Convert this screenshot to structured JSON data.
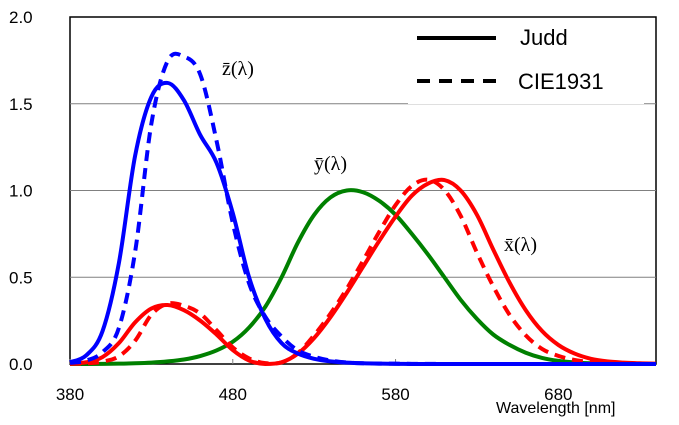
{
  "chart_data": {
    "type": "line",
    "xlabel": "Wavelength [nm]",
    "ylabel": "",
    "xlim": [
      380,
      740
    ],
    "ylim": [
      0,
      2.0
    ],
    "x_ticks": [
      380,
      480,
      580,
      680
    ],
    "y_ticks": [
      0.0,
      0.5,
      1.0,
      1.5,
      2.0
    ],
    "x_tick_labels": [
      "380",
      "480",
      "580",
      "680"
    ],
    "y_tick_labels": [
      "0.0",
      "0.5",
      "1.0",
      "1.5",
      "2.0"
    ],
    "grid": "horizontal",
    "legend_position": "top-right",
    "legend": [
      {
        "label": "Judd",
        "style": "solid"
      },
      {
        "label": "CIE1931",
        "style": "dashed"
      }
    ],
    "annotations": [
      {
        "text": "z̄(λ)",
        "x": 454,
        "y": 1.72
      },
      {
        "text": "ȳ(λ)",
        "x": 532,
        "y": 1.11
      },
      {
        "text": "x̄(λ)",
        "x": 646,
        "y": 0.66
      }
    ],
    "x": [
      380,
      390,
      400,
      410,
      420,
      430,
      440,
      450,
      460,
      470,
      480,
      490,
      500,
      510,
      520,
      530,
      540,
      550,
      560,
      570,
      580,
      590,
      600,
      610,
      620,
      630,
      640,
      650,
      660,
      670,
      680,
      690,
      700,
      710,
      720,
      730,
      740
    ],
    "series": [
      {
        "curve": "x",
        "system": "Judd",
        "color": "#ff0000",
        "style": "solid",
        "values": [
          0.002,
          0.01,
          0.04,
          0.12,
          0.24,
          0.32,
          0.34,
          0.31,
          0.25,
          0.17,
          0.08,
          0.02,
          0.0,
          0.01,
          0.06,
          0.15,
          0.27,
          0.41,
          0.56,
          0.71,
          0.85,
          0.97,
          1.04,
          1.06,
          1.0,
          0.86,
          0.66,
          0.47,
          0.31,
          0.19,
          0.11,
          0.06,
          0.03,
          0.015,
          0.008,
          0.004,
          0.002
        ]
      },
      {
        "curve": "x",
        "system": "CIE1931",
        "color": "#ff0000",
        "style": "dashed",
        "values": [
          0.001,
          0.004,
          0.014,
          0.044,
          0.134,
          0.284,
          0.348,
          0.336,
          0.291,
          0.195,
          0.096,
          0.032,
          0.005,
          0.009,
          0.063,
          0.166,
          0.29,
          0.433,
          0.595,
          0.762,
          0.916,
          1.026,
          1.062,
          1.003,
          0.854,
          0.642,
          0.448,
          0.284,
          0.165,
          0.087,
          0.047,
          0.023,
          0.011,
          0.006,
          0.003,
          0.001,
          0.001
        ]
      },
      {
        "curve": "y",
        "system": "Judd",
        "color": "#008000",
        "style": "solid",
        "values": [
          0.0,
          0.0,
          0.001,
          0.002,
          0.004,
          0.008,
          0.015,
          0.026,
          0.046,
          0.078,
          0.128,
          0.21,
          0.33,
          0.5,
          0.7,
          0.86,
          0.96,
          1.0,
          0.99,
          0.94,
          0.86,
          0.75,
          0.63,
          0.5,
          0.37,
          0.26,
          0.17,
          0.11,
          0.065,
          0.035,
          0.018,
          0.009,
          0.004,
          0.002,
          0.001,
          0.0,
          0.0
        ]
      },
      {
        "curve": "z",
        "system": "Judd",
        "color": "#0000ff",
        "style": "solid",
        "values": [
          0.01,
          0.05,
          0.19,
          0.58,
          1.2,
          1.54,
          1.62,
          1.52,
          1.32,
          1.16,
          0.87,
          0.5,
          0.26,
          0.12,
          0.06,
          0.03,
          0.015,
          0.008,
          0.004,
          0.002,
          0.001,
          0.0,
          0.0,
          0.0,
          0.0,
          0.0,
          0.0,
          0.0,
          0.0,
          0.0,
          0.0,
          0.0,
          0.0,
          0.0,
          0.0,
          0.0,
          0.0
        ]
      },
      {
        "curve": "z",
        "system": "CIE1931",
        "color": "#0000ff",
        "style": "dashed",
        "values": [
          0.006,
          0.02,
          0.068,
          0.207,
          0.646,
          1.386,
          1.747,
          1.772,
          1.669,
          1.288,
          0.813,
          0.465,
          0.272,
          0.158,
          0.078,
          0.042,
          0.02,
          0.009,
          0.004,
          0.002,
          0.002,
          0.001,
          0.001,
          0.0,
          0.0,
          0.0,
          0.0,
          0.0,
          0.0,
          0.0,
          0.0,
          0.0,
          0.0,
          0.0,
          0.0,
          0.0,
          0.0
        ]
      }
    ]
  }
}
